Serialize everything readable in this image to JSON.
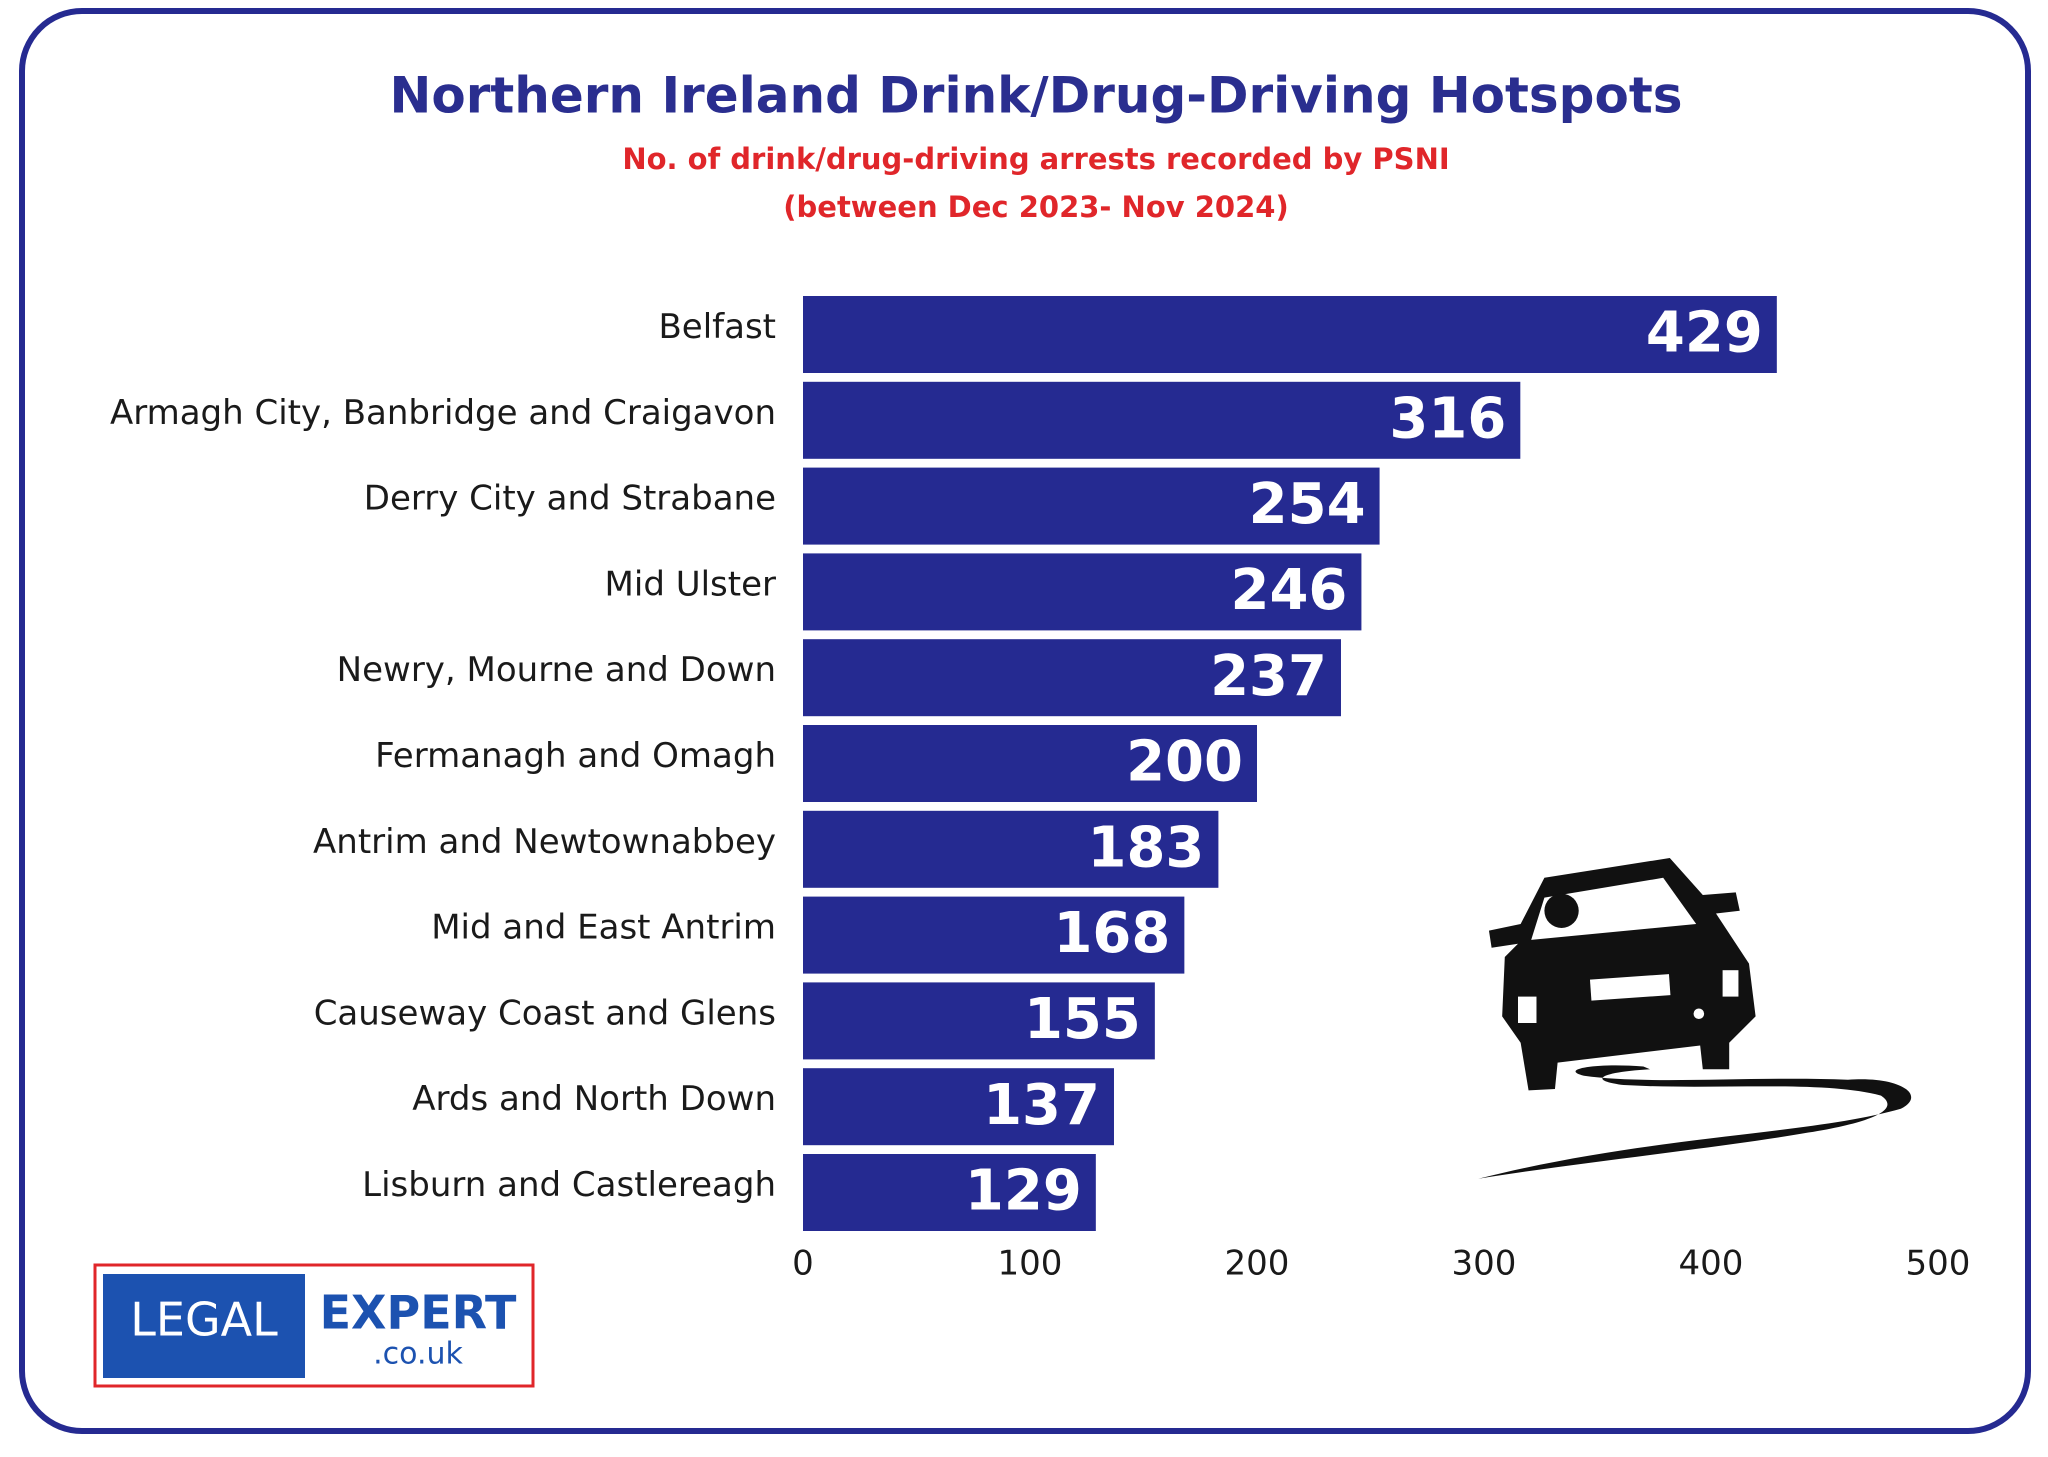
{
  "chart_data": {
    "type": "bar",
    "orientation": "horizontal",
    "title": "Northern Ireland Drink/Drug-Driving Hotspots",
    "subtitle": [
      "No. of drink/drug-driving arrests recorded by PSNI",
      "(between Dec 2023- Nov 2024)"
    ],
    "categories": [
      "Belfast",
      "Armagh City, Banbridge and Craigavon",
      "Derry City and Strabane",
      "Mid Ulster",
      "Newry, Mourne and Down",
      "Fermanagh and Omagh",
      "Antrim and Newtownabbey",
      "Mid and East Antrim",
      "Causeway Coast and Glens",
      "Ards and North Down",
      "Lisburn and Castlereagh"
    ],
    "values": [
      429,
      316,
      254,
      246,
      237,
      200,
      183,
      168,
      155,
      137,
      129
    ],
    "color": "#252a91",
    "xlim": [
      0,
      500
    ],
    "xticks": [
      0,
      100,
      200,
      300,
      400,
      500
    ],
    "grid": false
  },
  "logo": {
    "left": "LEGAL",
    "right": "EXPERT",
    "domain": ".co.uk"
  }
}
